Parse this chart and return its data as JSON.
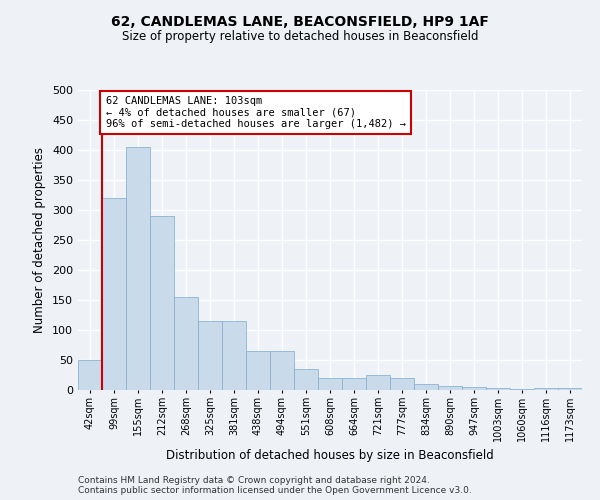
{
  "title_line1": "62, CANDLEMAS LANE, BEACONSFIELD, HP9 1AF",
  "title_line2": "Size of property relative to detached houses in Beaconsfield",
  "xlabel": "Distribution of detached houses by size in Beaconsfield",
  "ylabel": "Number of detached properties",
  "categories": [
    "42sqm",
    "99sqm",
    "155sqm",
    "212sqm",
    "268sqm",
    "325sqm",
    "381sqm",
    "438sqm",
    "494sqm",
    "551sqm",
    "608sqm",
    "664sqm",
    "721sqm",
    "777sqm",
    "834sqm",
    "890sqm",
    "947sqm",
    "1003sqm",
    "1060sqm",
    "1116sqm",
    "1173sqm"
  ],
  "values": [
    50,
    320,
    405,
    290,
    155,
    115,
    115,
    65,
    65,
    35,
    20,
    20,
    25,
    20,
    10,
    7,
    5,
    3,
    2,
    3,
    3
  ],
  "bar_color": "#c9daea",
  "bar_edge_color": "#8ab4d0",
  "vline_color": "#cc0000",
  "annotation_text": "62 CANDLEMAS LANE: 103sqm\n← 4% of detached houses are smaller (67)\n96% of semi-detached houses are larger (1,482) →",
  "annotation_box_color": "#ffffff",
  "annotation_box_edge": "#cc0000",
  "ylim": [
    0,
    500
  ],
  "yticks": [
    0,
    50,
    100,
    150,
    200,
    250,
    300,
    350,
    400,
    450,
    500
  ],
  "footnote1": "Contains HM Land Registry data © Crown copyright and database right 2024.",
  "footnote2": "Contains public sector information licensed under the Open Government Licence v3.0.",
  "background_color": "#eef2f7",
  "grid_color": "#ffffff"
}
